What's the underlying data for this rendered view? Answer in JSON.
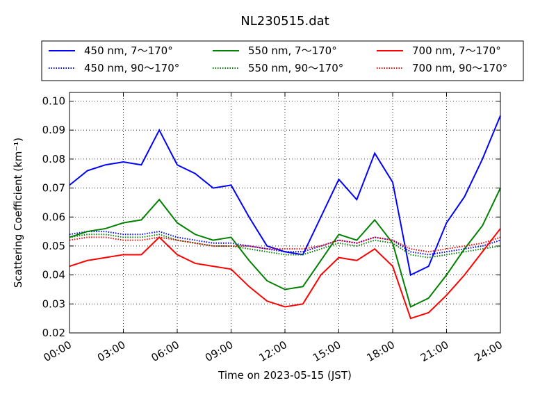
{
  "chart_data": {
    "type": "line",
    "title": "NL230515.dat",
    "xlabel": "Time on 2023-05-15 (JST)",
    "ylabel": "Scattering Coefficient (km⁻¹)",
    "x": [
      "00:00",
      "01:00",
      "02:00",
      "03:00",
      "04:00",
      "05:00",
      "06:00",
      "07:00",
      "08:00",
      "09:00",
      "10:00",
      "11:00",
      "12:00",
      "13:00",
      "14:00",
      "15:00",
      "16:00",
      "17:00",
      "18:00",
      "19:00",
      "20:00",
      "21:00",
      "22:00",
      "23:00",
      "24:00"
    ],
    "xlim": [
      "00:00",
      "24:00"
    ],
    "xticks": [
      "00:00",
      "03:00",
      "06:00",
      "09:00",
      "12:00",
      "15:00",
      "18:00",
      "21:00",
      "24:00"
    ],
    "ylim": [
      0.02,
      0.103
    ],
    "yticks": [
      0.02,
      0.03,
      0.04,
      0.05,
      0.06,
      0.07,
      0.08,
      0.09,
      {
        "value": 0.1,
        "label": "0.10"
      }
    ],
    "grid": true,
    "series": [
      {
        "name": "450 nm, 7～170°",
        "color": "#0000ff",
        "linestyle": "solid",
        "values": [
          0.071,
          0.076,
          0.078,
          0.079,
          0.078,
          0.09,
          0.078,
          0.075,
          0.07,
          0.071,
          0.06,
          0.05,
          0.048,
          0.047,
          0.06,
          0.073,
          0.066,
          0.082,
          0.072,
          0.04,
          0.043,
          0.058,
          0.067,
          0.08,
          0.095
        ]
      },
      {
        "name": "450 nm, 90～170°",
        "color": "#0000ff",
        "linestyle": "dotted",
        "values": [
          0.054,
          0.055,
          0.055,
          0.054,
          0.054,
          0.055,
          0.053,
          0.052,
          0.051,
          0.051,
          0.05,
          0.049,
          0.048,
          0.048,
          0.05,
          0.052,
          0.051,
          0.053,
          0.052,
          0.048,
          0.047,
          0.048,
          0.049,
          0.05,
          0.052
        ]
      },
      {
        "name": "550 nm, 7～170°",
        "color": "#008000",
        "linestyle": "solid",
        "values": [
          0.053,
          0.055,
          0.056,
          0.058,
          0.059,
          0.066,
          0.058,
          0.054,
          0.052,
          0.053,
          0.045,
          0.038,
          0.035,
          0.036,
          0.045,
          0.054,
          0.052,
          0.059,
          0.051,
          0.029,
          0.032,
          0.04,
          0.049,
          0.057,
          0.07
        ]
      },
      {
        "name": "550 nm, 90～170°",
        "color": "#008000",
        "linestyle": "dotted",
        "values": [
          0.053,
          0.054,
          0.054,
          0.053,
          0.053,
          0.054,
          0.052,
          0.051,
          0.05,
          0.05,
          0.049,
          0.048,
          0.047,
          0.047,
          0.049,
          0.051,
          0.05,
          0.052,
          0.051,
          0.047,
          0.046,
          0.047,
          0.048,
          0.049,
          0.05
        ]
      },
      {
        "name": "700 nm, 7～170°",
        "color": "#ff0000",
        "linestyle": "solid",
        "values": [
          0.043,
          0.045,
          0.046,
          0.047,
          0.047,
          0.053,
          0.047,
          0.044,
          0.043,
          0.042,
          0.036,
          0.031,
          0.029,
          0.03,
          0.04,
          0.046,
          0.045,
          0.049,
          0.043,
          0.025,
          0.027,
          0.033,
          0.04,
          0.048,
          0.056
        ]
      },
      {
        "name": "700 nm, 90～170°",
        "color": "#ff0000",
        "linestyle": "dotted",
        "values": [
          0.052,
          0.053,
          0.053,
          0.052,
          0.052,
          0.053,
          0.052,
          0.051,
          0.05,
          0.05,
          0.05,
          0.049,
          0.049,
          0.049,
          0.05,
          0.052,
          0.051,
          0.053,
          0.052,
          0.049,
          0.048,
          0.049,
          0.05,
          0.051,
          0.053
        ]
      }
    ]
  }
}
